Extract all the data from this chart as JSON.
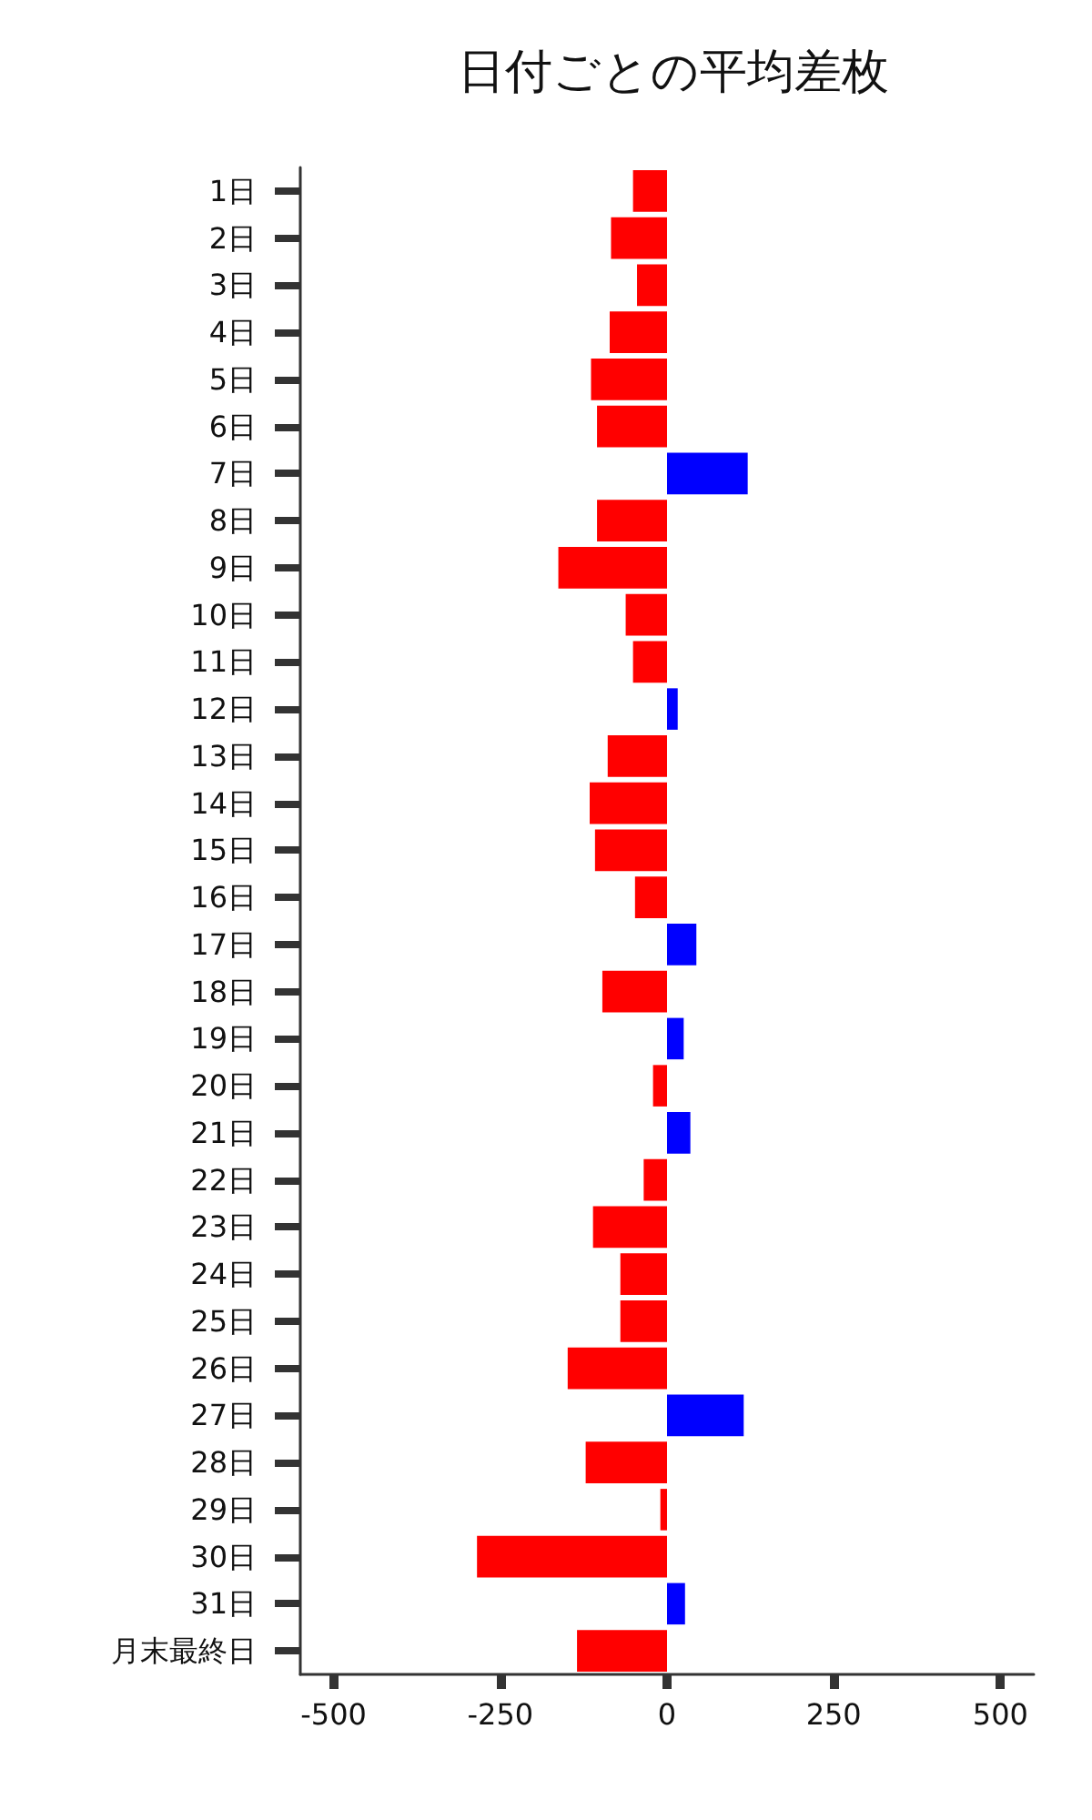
{
  "chart_data": {
    "type": "bar",
    "orientation": "horizontal",
    "title": "日付ごとの平均差枚",
    "categories": [
      "1日",
      "2日",
      "3日",
      "4日",
      "5日",
      "6日",
      "7日",
      "8日",
      "9日",
      "10日",
      "11日",
      "12日",
      "13日",
      "14日",
      "15日",
      "16日",
      "17日",
      "18日",
      "19日",
      "20日",
      "21日",
      "22日",
      "23日",
      "24日",
      "25日",
      "26日",
      "27日",
      "28日",
      "29日",
      "30日",
      "31日",
      "月末最終日"
    ],
    "values": [
      -51,
      -84,
      -45,
      -86,
      -114,
      -105,
      121,
      -105,
      -163,
      -62,
      -51,
      16,
      -89,
      -116,
      -108,
      -48,
      44,
      -97,
      25,
      -21,
      35,
      -35,
      -111,
      -70,
      -70,
      -149,
      115,
      -122,
      -10,
      -285,
      27,
      -135
    ],
    "colors": [
      "#ff0000",
      "#ff0000",
      "#ff0000",
      "#ff0000",
      "#ff0000",
      "#ff0000",
      "#0000ff",
      "#ff0000",
      "#ff0000",
      "#ff0000",
      "#ff0000",
      "#0000ff",
      "#ff0000",
      "#ff0000",
      "#ff0000",
      "#ff0000",
      "#0000ff",
      "#ff0000",
      "#0000ff",
      "#ff0000",
      "#0000ff",
      "#ff0000",
      "#ff0000",
      "#ff0000",
      "#ff0000",
      "#ff0000",
      "#0000ff",
      "#ff0000",
      "#ff0000",
      "#ff0000",
      "#0000ff",
      "#ff0000"
    ],
    "xlim": [
      -550,
      550
    ],
    "xticks": [
      -500,
      -250,
      0,
      250,
      500
    ],
    "grid": false
  }
}
